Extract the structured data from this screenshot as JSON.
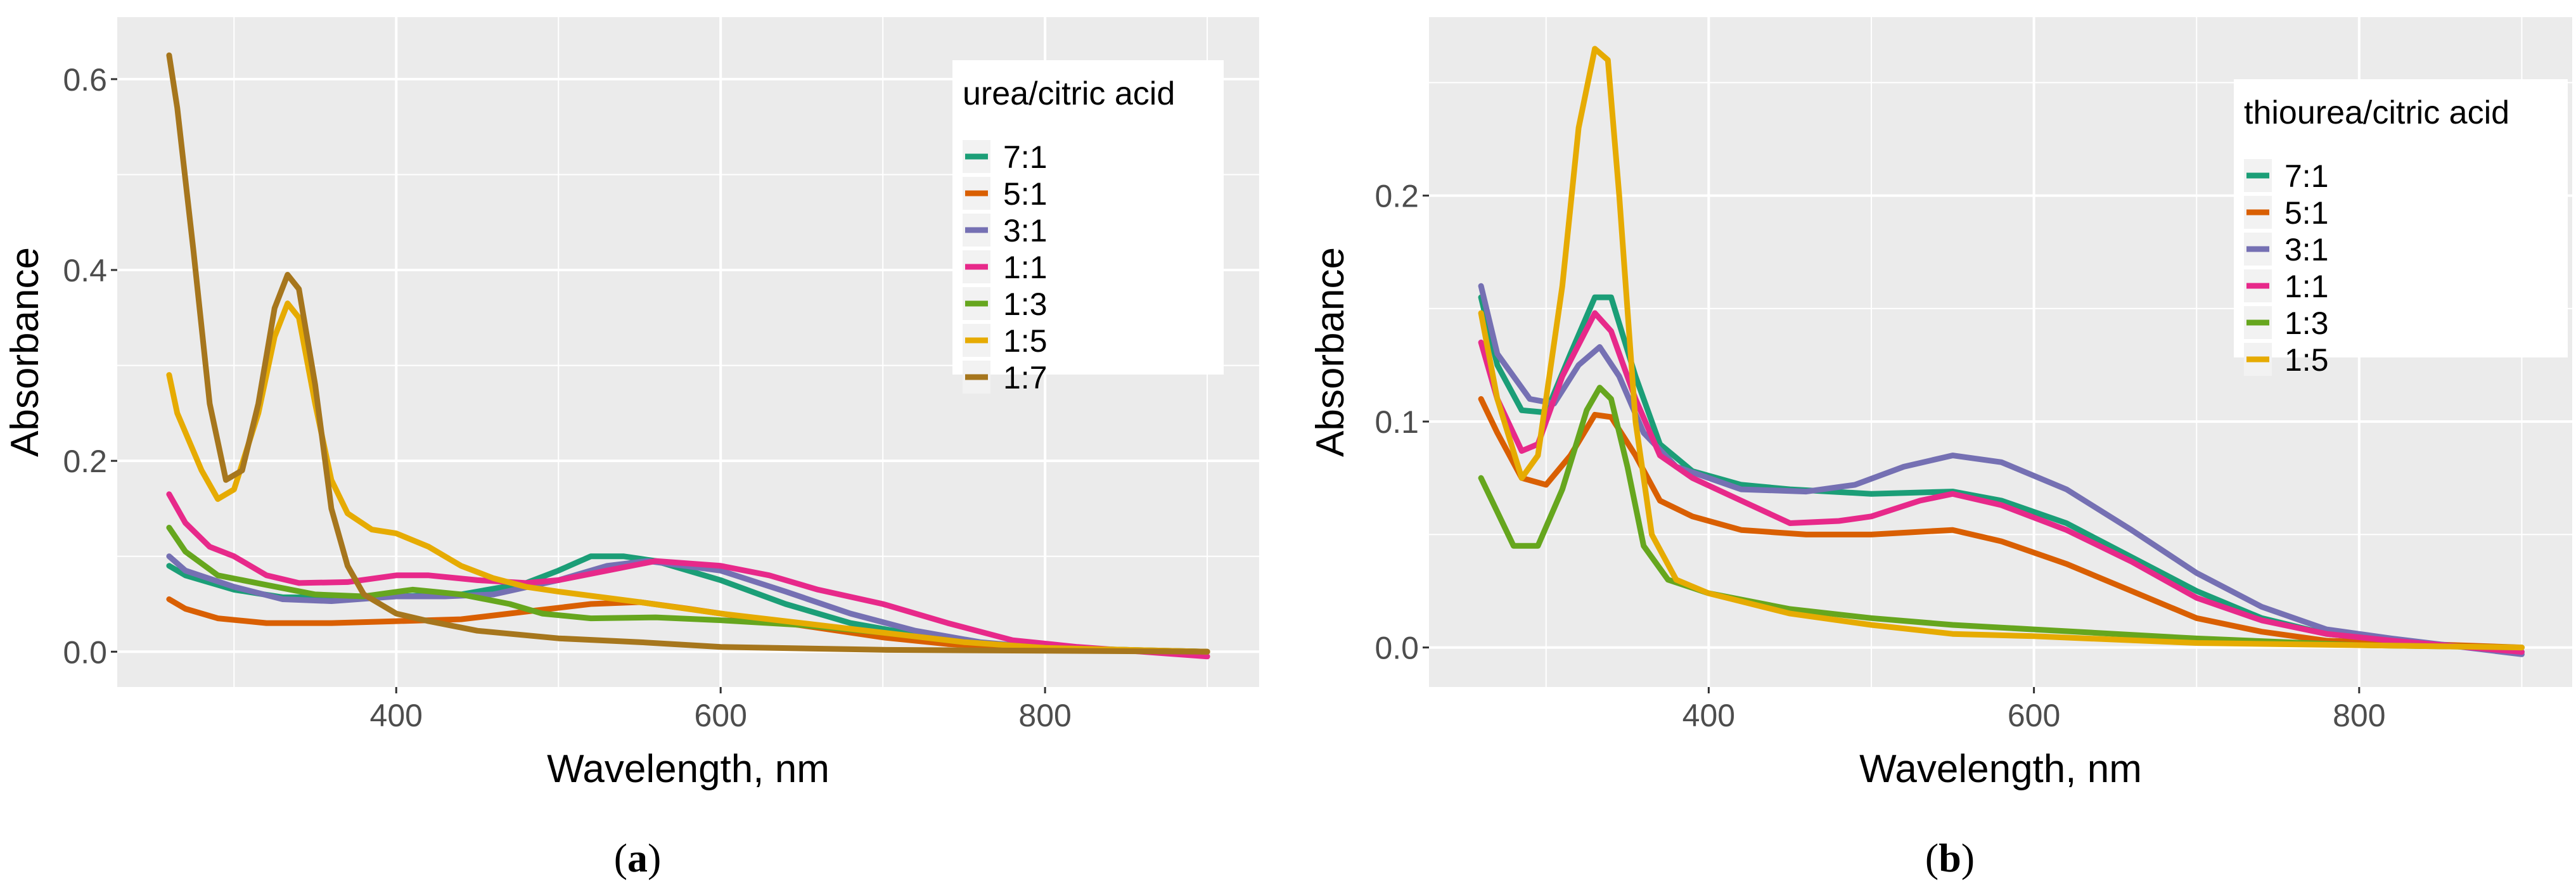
{
  "chart_data": [
    {
      "type": "line",
      "panel_label": "a",
      "xlabel": "Wavelength, nm",
      "ylabel": "Absorbance",
      "xlim": [
        228,
        932
      ],
      "ylim": [
        -0.037,
        0.665
      ],
      "xticks": [
        400,
        600,
        800
      ],
      "yticks": [
        0.0,
        0.2,
        0.4,
        0.6
      ],
      "ytick_labels": [
        "0.0",
        "0.2",
        "0.4",
        "0.6"
      ],
      "grid": true,
      "legend_title": "urea/citric acid",
      "legend_position": "top-right",
      "series": [
        {
          "name": "7:1",
          "color": "#1B9E77",
          "x": [
            260,
            270,
            300,
            330,
            360,
            400,
            440,
            480,
            500,
            520,
            540,
            560,
            600,
            640,
            680,
            720,
            760,
            800,
            900
          ],
          "y": [
            0.09,
            0.08,
            0.065,
            0.057,
            0.057,
            0.058,
            0.06,
            0.072,
            0.085,
            0.1,
            0.1,
            0.095,
            0.075,
            0.05,
            0.03,
            0.018,
            0.008,
            0.003,
            0
          ]
        },
        {
          "name": "5:1",
          "color": "#D95F02",
          "x": [
            260,
            270,
            290,
            320,
            360,
            400,
            440,
            480,
            520,
            550,
            580,
            620,
            660,
            700,
            740,
            800,
            900
          ],
          "y": [
            0.055,
            0.045,
            0.035,
            0.03,
            0.03,
            0.032,
            0.034,
            0.042,
            0.05,
            0.052,
            0.045,
            0.035,
            0.025,
            0.015,
            0.008,
            0.003,
            0
          ]
        },
        {
          "name": "3:1",
          "color": "#7570B3",
          "x": [
            260,
            270,
            300,
            330,
            360,
            400,
            430,
            460,
            500,
            530,
            555,
            600,
            640,
            680,
            720,
            760,
            800,
            900
          ],
          "y": [
            0.1,
            0.085,
            0.068,
            0.055,
            0.053,
            0.058,
            0.058,
            0.06,
            0.075,
            0.09,
            0.095,
            0.085,
            0.063,
            0.04,
            0.022,
            0.01,
            0.004,
            0
          ]
        },
        {
          "name": "1:1",
          "color": "#E7298A",
          "x": [
            260,
            270,
            285,
            300,
            320,
            340,
            370,
            400,
            420,
            450,
            480,
            500,
            530,
            560,
            600,
            630,
            660,
            700,
            740,
            780,
            820,
            900
          ],
          "y": [
            0.165,
            0.135,
            0.11,
            0.1,
            0.08,
            0.072,
            0.073,
            0.08,
            0.08,
            0.075,
            0.072,
            0.075,
            0.085,
            0.095,
            0.09,
            0.08,
            0.065,
            0.05,
            0.03,
            0.012,
            0.005,
            -0.005
          ]
        },
        {
          "name": "1:3",
          "color": "#66A61E",
          "x": [
            260,
            270,
            290,
            320,
            350,
            380,
            410,
            440,
            470,
            490,
            520,
            560,
            600,
            650,
            700,
            750,
            800,
            900
          ],
          "y": [
            0.13,
            0.105,
            0.08,
            0.07,
            0.06,
            0.058,
            0.065,
            0.06,
            0.05,
            0.04,
            0.035,
            0.036,
            0.033,
            0.028,
            0.02,
            0.01,
            0.004,
            0
          ]
        },
        {
          "name": "1:5",
          "color": "#E6AB02",
          "x": [
            260,
            265,
            280,
            290,
            300,
            315,
            325,
            333,
            340,
            350,
            360,
            370,
            385,
            400,
            420,
            440,
            460,
            480,
            500,
            550,
            600,
            650,
            700,
            750,
            800,
            900
          ],
          "y": [
            0.29,
            0.25,
            0.19,
            0.16,
            0.17,
            0.25,
            0.33,
            0.365,
            0.35,
            0.26,
            0.18,
            0.145,
            0.128,
            0.124,
            0.11,
            0.09,
            0.077,
            0.068,
            0.063,
            0.052,
            0.04,
            0.03,
            0.02,
            0.01,
            0.004,
            0
          ]
        },
        {
          "name": "1:7",
          "color": "#A6761D",
          "x": [
            260,
            265,
            275,
            285,
            295,
            305,
            315,
            325,
            333,
            340,
            350,
            360,
            370,
            380,
            400,
            420,
            450,
            500,
            550,
            600,
            700,
            800,
            900
          ],
          "y": [
            0.625,
            0.57,
            0.42,
            0.26,
            0.18,
            0.19,
            0.26,
            0.36,
            0.395,
            0.38,
            0.28,
            0.15,
            0.09,
            0.06,
            0.04,
            0.032,
            0.022,
            0.014,
            0.01,
            0.005,
            0.002,
            0.001,
            0
          ]
        }
      ]
    },
    {
      "type": "line",
      "panel_label": "b",
      "xlabel": "Wavelength, nm",
      "ylabel": "Absorbance",
      "xlim": [
        228,
        931
      ],
      "ylim": [
        -0.0175,
        0.279
      ],
      "xticks": [
        400,
        600,
        800
      ],
      "yticks": [
        0.0,
        0.1,
        0.2
      ],
      "ytick_labels": [
        "0.0",
        "0.1",
        "0.2"
      ],
      "grid": true,
      "legend_title": "thiourea/citric acid",
      "legend_position": "top-right",
      "series": [
        {
          "name": "7:1",
          "color": "#1B9E77",
          "x": [
            260,
            270,
            285,
            300,
            315,
            330,
            340,
            355,
            370,
            390,
            420,
            450,
            500,
            550,
            580,
            620,
            660,
            700,
            740,
            780,
            820,
            900
          ],
          "y": [
            0.155,
            0.125,
            0.105,
            0.104,
            0.13,
            0.155,
            0.155,
            0.12,
            0.09,
            0.078,
            0.072,
            0.07,
            0.068,
            0.069,
            0.065,
            0.055,
            0.04,
            0.025,
            0.013,
            0.006,
            0.003,
            -0.002
          ]
        },
        {
          "name": "5:1",
          "color": "#D95F02",
          "x": [
            260,
            270,
            285,
            300,
            315,
            330,
            340,
            355,
            370,
            390,
            420,
            460,
            500,
            550,
            580,
            620,
            660,
            700,
            740,
            780,
            900
          ],
          "y": [
            0.11,
            0.095,
            0.075,
            0.072,
            0.085,
            0.103,
            0.102,
            0.085,
            0.065,
            0.058,
            0.052,
            0.05,
            0.05,
            0.052,
            0.047,
            0.037,
            0.025,
            0.013,
            0.007,
            0.003,
            0
          ]
        },
        {
          "name": "3:1",
          "color": "#7570B3",
          "x": [
            260,
            270,
            290,
            305,
            320,
            333,
            345,
            360,
            380,
            420,
            460,
            490,
            520,
            550,
            580,
            620,
            660,
            700,
            740,
            780,
            820,
            900
          ],
          "y": [
            0.16,
            0.13,
            0.11,
            0.108,
            0.125,
            0.133,
            0.12,
            0.095,
            0.08,
            0.07,
            0.069,
            0.072,
            0.08,
            0.085,
            0.082,
            0.07,
            0.052,
            0.033,
            0.018,
            0.008,
            0.004,
            -0.003
          ]
        },
        {
          "name": "1:1",
          "color": "#E7298A",
          "x": [
            260,
            270,
            285,
            295,
            310,
            330,
            340,
            355,
            370,
            390,
            420,
            450,
            480,
            500,
            530,
            550,
            580,
            620,
            660,
            700,
            740,
            780,
            820,
            900
          ],
          "y": [
            0.135,
            0.11,
            0.087,
            0.09,
            0.12,
            0.148,
            0.14,
            0.11,
            0.085,
            0.075,
            0.065,
            0.055,
            0.056,
            0.058,
            0.065,
            0.068,
            0.063,
            0.052,
            0.038,
            0.022,
            0.012,
            0.006,
            0.003,
            -0.002
          ]
        },
        {
          "name": "1:3",
          "color": "#66A61E",
          "x": [
            260,
            270,
            280,
            295,
            310,
            325,
            333,
            340,
            350,
            360,
            375,
            400,
            450,
            500,
            550,
            600,
            700,
            800,
            900
          ],
          "y": [
            0.075,
            0.06,
            0.045,
            0.045,
            0.07,
            0.105,
            0.115,
            0.11,
            0.08,
            0.045,
            0.03,
            0.024,
            0.017,
            0.013,
            0.01,
            0.008,
            0.004,
            0.001,
            0
          ]
        },
        {
          "name": "1:5",
          "color": "#E6AB02",
          "x": [
            260,
            270,
            285,
            295,
            310,
            320,
            330,
            338,
            345,
            355,
            365,
            380,
            400,
            450,
            500,
            550,
            600,
            700,
            800,
            900
          ],
          "y": [
            0.148,
            0.11,
            0.075,
            0.085,
            0.16,
            0.23,
            0.265,
            0.26,
            0.2,
            0.1,
            0.05,
            0.03,
            0.024,
            0.015,
            0.01,
            0.006,
            0.005,
            0.002,
            0.001,
            0
          ]
        }
      ]
    }
  ]
}
